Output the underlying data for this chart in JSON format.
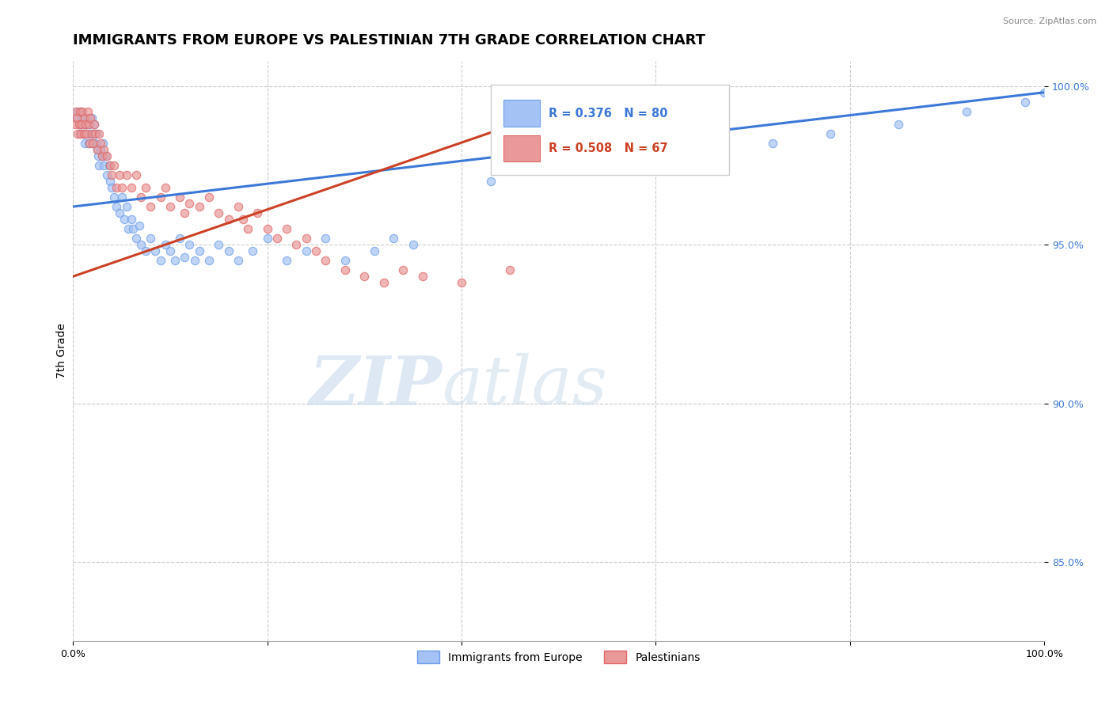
{
  "title": "IMMIGRANTS FROM EUROPE VS PALESTINIAN 7TH GRADE CORRELATION CHART",
  "source_text": "Source: ZipAtlas.com",
  "ylabel": "7th Grade",
  "watermark_zip": "ZIP",
  "watermark_atlas": "atlas",
  "xlim": [
    0.0,
    1.0
  ],
  "ylim": [
    0.825,
    1.008
  ],
  "xticks": [
    0.0,
    0.2,
    0.4,
    0.6,
    0.8,
    1.0
  ],
  "xticklabels": [
    "0.0%",
    "",
    "",
    "",
    "",
    "100.0%"
  ],
  "ytick_positions": [
    0.85,
    0.9,
    0.95,
    1.0
  ],
  "yticklabels": [
    "85.0%",
    "90.0%",
    "95.0%",
    "100.0%"
  ],
  "blue_R": 0.376,
  "blue_N": 80,
  "pink_R": 0.508,
  "pink_N": 67,
  "blue_color": "#a4c2f4",
  "pink_color": "#ea9999",
  "blue_edge_color": "#6d9eeb",
  "pink_edge_color": "#e06666",
  "blue_line_color": "#3c78d8",
  "pink_line_color": "#cc4125",
  "legend_blue_label": "Immigrants from Europe",
  "legend_pink_label": "Palestinians",
  "blue_x": [
    0.004,
    0.005,
    0.006,
    0.007,
    0.008,
    0.009,
    0.01,
    0.011,
    0.012,
    0.013,
    0.014,
    0.015,
    0.016,
    0.017,
    0.018,
    0.019,
    0.02,
    0.021,
    0.022,
    0.023,
    0.024,
    0.025,
    0.026,
    0.027,
    0.028,
    0.03,
    0.031,
    0.032,
    0.033,
    0.035,
    0.037,
    0.038,
    0.04,
    0.042,
    0.045,
    0.048,
    0.05,
    0.053,
    0.055,
    0.057,
    0.06,
    0.062,
    0.065,
    0.068,
    0.07,
    0.075,
    0.08,
    0.085,
    0.09,
    0.095,
    0.1,
    0.105,
    0.11,
    0.115,
    0.12,
    0.125,
    0.13,
    0.14,
    0.15,
    0.16,
    0.17,
    0.185,
    0.2,
    0.22,
    0.24,
    0.26,
    0.28,
    0.31,
    0.33,
    0.35,
    0.43,
    0.56,
    0.6,
    0.65,
    0.72,
    0.78,
    0.85,
    0.92,
    0.98,
    1.0
  ],
  "blue_y": [
    0.99,
    0.992,
    0.988,
    0.985,
    0.992,
    0.988,
    0.99,
    0.985,
    0.982,
    0.988,
    0.985,
    0.99,
    0.982,
    0.988,
    0.985,
    0.99,
    0.982,
    0.985,
    0.988,
    0.982,
    0.985,
    0.98,
    0.978,
    0.975,
    0.98,
    0.978,
    0.982,
    0.975,
    0.978,
    0.972,
    0.975,
    0.97,
    0.968,
    0.965,
    0.962,
    0.96,
    0.965,
    0.958,
    0.962,
    0.955,
    0.958,
    0.955,
    0.952,
    0.956,
    0.95,
    0.948,
    0.952,
    0.948,
    0.945,
    0.95,
    0.948,
    0.945,
    0.952,
    0.946,
    0.95,
    0.945,
    0.948,
    0.945,
    0.95,
    0.948,
    0.945,
    0.948,
    0.952,
    0.945,
    0.948,
    0.952,
    0.945,
    0.948,
    0.952,
    0.95,
    0.97,
    0.975,
    0.978,
    0.98,
    0.982,
    0.985,
    0.988,
    0.992,
    0.995,
    0.998
  ],
  "pink_x": [
    0.002,
    0.003,
    0.004,
    0.005,
    0.006,
    0.007,
    0.008,
    0.009,
    0.01,
    0.011,
    0.012,
    0.013,
    0.014,
    0.015,
    0.016,
    0.017,
    0.018,
    0.019,
    0.02,
    0.022,
    0.023,
    0.025,
    0.027,
    0.028,
    0.03,
    0.032,
    0.035,
    0.038,
    0.04,
    0.042,
    0.045,
    0.048,
    0.05,
    0.055,
    0.06,
    0.065,
    0.07,
    0.075,
    0.08,
    0.09,
    0.095,
    0.1,
    0.11,
    0.115,
    0.12,
    0.13,
    0.14,
    0.15,
    0.16,
    0.17,
    0.175,
    0.18,
    0.19,
    0.2,
    0.21,
    0.22,
    0.23,
    0.24,
    0.25,
    0.26,
    0.28,
    0.3,
    0.32,
    0.34,
    0.36,
    0.4,
    0.45
  ],
  "pink_y": [
    0.988,
    0.992,
    0.99,
    0.985,
    0.988,
    0.992,
    0.985,
    0.988,
    0.992,
    0.985,
    0.99,
    0.988,
    0.985,
    0.992,
    0.988,
    0.982,
    0.99,
    0.985,
    0.982,
    0.988,
    0.985,
    0.98,
    0.985,
    0.982,
    0.978,
    0.98,
    0.978,
    0.975,
    0.972,
    0.975,
    0.968,
    0.972,
    0.968,
    0.972,
    0.968,
    0.972,
    0.965,
    0.968,
    0.962,
    0.965,
    0.968,
    0.962,
    0.965,
    0.96,
    0.963,
    0.962,
    0.965,
    0.96,
    0.958,
    0.962,
    0.958,
    0.955,
    0.96,
    0.955,
    0.952,
    0.955,
    0.95,
    0.952,
    0.948,
    0.945,
    0.942,
    0.94,
    0.938,
    0.942,
    0.94,
    0.938,
    0.942
  ],
  "blue_trend_x0": 0.0,
  "blue_trend_x1": 1.0,
  "blue_trend_y0": 0.962,
  "blue_trend_y1": 0.998,
  "pink_trend_x0": 0.0,
  "pink_trend_x1": 0.55,
  "pink_trend_y0": 0.94,
  "pink_trend_y1": 0.998,
  "background_color": "#ffffff",
  "grid_color": "#cccccc",
  "title_fontsize": 13,
  "tick_color": "#3c78d8",
  "tick_fontsize": 9
}
